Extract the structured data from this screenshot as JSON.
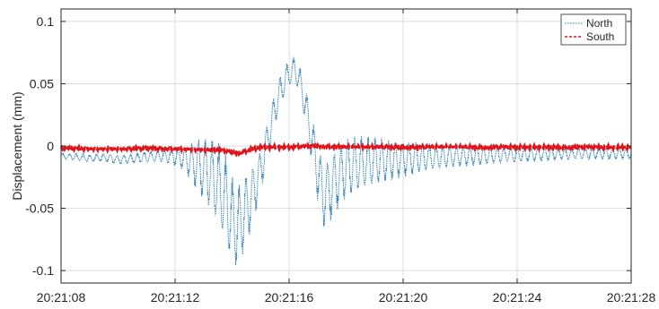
{
  "chart_data": {
    "type": "line",
    "title": "",
    "xlabel": "",
    "ylabel": "Displacement (mm)",
    "x_ticks": [
      "20:21:08",
      "20:21:12",
      "20:21:16",
      "20:21:20",
      "20:21:24",
      "20:21:28"
    ],
    "x_tick_seconds": [
      0,
      4,
      8,
      12,
      16,
      20
    ],
    "xlim_seconds": [
      0,
      20
    ],
    "y_ticks": [
      -0.1,
      -0.05,
      0,
      0.05,
      0.1
    ],
    "y_tick_labels": [
      "-0.1",
      "-0.05",
      "0",
      "0.05",
      "0.1"
    ],
    "ylim": [
      -0.11,
      0.11
    ],
    "grid": true,
    "legend_position": "top-right",
    "series": [
      {
        "name": "North",
        "color": "#1f77b4",
        "style": "dotted",
        "points": [
          [
            0.0,
            -0.008
          ],
          [
            0.5,
            -0.009
          ],
          [
            1.0,
            -0.01
          ],
          [
            1.5,
            -0.009
          ],
          [
            2.0,
            -0.011
          ],
          [
            2.5,
            -0.01
          ],
          [
            3.0,
            -0.009
          ],
          [
            3.5,
            -0.008
          ],
          [
            4.0,
            -0.008
          ],
          [
            4.4,
            -0.01
          ],
          [
            4.8,
            -0.015
          ],
          [
            5.2,
            -0.022
          ],
          [
            5.5,
            -0.03
          ],
          [
            5.8,
            -0.045
          ],
          [
            6.0,
            -0.06
          ],
          [
            6.2,
            -0.065
          ],
          [
            6.4,
            -0.055
          ],
          [
            6.7,
            -0.04
          ],
          [
            7.0,
            -0.02
          ],
          [
            7.2,
            0.0
          ],
          [
            7.4,
            0.02
          ],
          [
            7.6,
            0.038
          ],
          [
            7.8,
            0.05
          ],
          [
            8.0,
            0.058
          ],
          [
            8.2,
            0.062
          ],
          [
            8.4,
            0.05
          ],
          [
            8.6,
            0.03
          ],
          [
            8.8,
            0.005
          ],
          [
            9.0,
            -0.02
          ],
          [
            9.2,
            -0.04
          ],
          [
            9.4,
            -0.035
          ],
          [
            9.7,
            -0.025
          ],
          [
            10.0,
            -0.018
          ],
          [
            10.5,
            -0.014
          ],
          [
            11.0,
            -0.012
          ],
          [
            12.0,
            -0.01
          ],
          [
            13.0,
            -0.009
          ],
          [
            14.0,
            -0.008
          ],
          [
            16.0,
            -0.007
          ],
          [
            18.0,
            -0.006
          ],
          [
            20.0,
            -0.006
          ]
        ],
        "envelope": [
          [
            0.0,
            0.002
          ],
          [
            2.0,
            0.003
          ],
          [
            3.5,
            0.004
          ],
          [
            4.3,
            0.008
          ],
          [
            4.8,
            0.018
          ],
          [
            5.3,
            0.025
          ],
          [
            5.8,
            0.03
          ],
          [
            6.2,
            0.028
          ],
          [
            6.6,
            0.022
          ],
          [
            7.0,
            0.015
          ],
          [
            7.4,
            0.012
          ],
          [
            7.8,
            0.01
          ],
          [
            8.2,
            0.008
          ],
          [
            8.6,
            0.012
          ],
          [
            9.0,
            0.02
          ],
          [
            9.4,
            0.022
          ],
          [
            10.0,
            0.02
          ],
          [
            11.0,
            0.016
          ],
          [
            12.0,
            0.012
          ],
          [
            13.0,
            0.009
          ],
          [
            14.0,
            0.007
          ],
          [
            16.0,
            0.005
          ],
          [
            18.0,
            0.004
          ],
          [
            20.0,
            0.004
          ]
        ]
      },
      {
        "name": "South",
        "color": "#e0151b",
        "style": "dashed",
        "points": [
          [
            0.0,
            -0.002
          ],
          [
            2.0,
            -0.002
          ],
          [
            4.0,
            -0.002
          ],
          [
            5.5,
            -0.003
          ],
          [
            6.2,
            -0.006
          ],
          [
            6.6,
            -0.003
          ],
          [
            7.0,
            -0.001
          ],
          [
            8.0,
            -0.001
          ],
          [
            9.0,
            0.0
          ],
          [
            10.0,
            -0.001
          ],
          [
            12.0,
            -0.001
          ],
          [
            14.0,
            -0.001
          ],
          [
            16.0,
            -0.001
          ],
          [
            18.0,
            -0.001
          ],
          [
            20.0,
            -0.001
          ]
        ]
      }
    ]
  }
}
